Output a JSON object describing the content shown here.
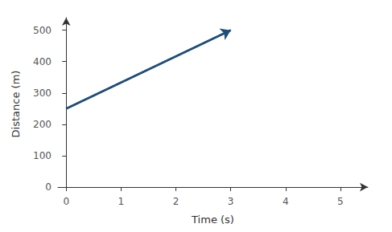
{
  "chart_data": {
    "type": "line",
    "x": [
      0,
      3
    ],
    "values": [
      250,
      500
    ],
    "color": "#1f4e79",
    "xlabel": "Time (s)",
    "ylabel": "Distance (m)",
    "xlim": [
      -0.15,
      5.5
    ],
    "ylim": [
      -10,
      540
    ],
    "xticks": [
      0,
      1,
      2,
      3,
      4,
      5
    ],
    "yticks": [
      0,
      100,
      200,
      300,
      400,
      500
    ],
    "grid": false
  }
}
